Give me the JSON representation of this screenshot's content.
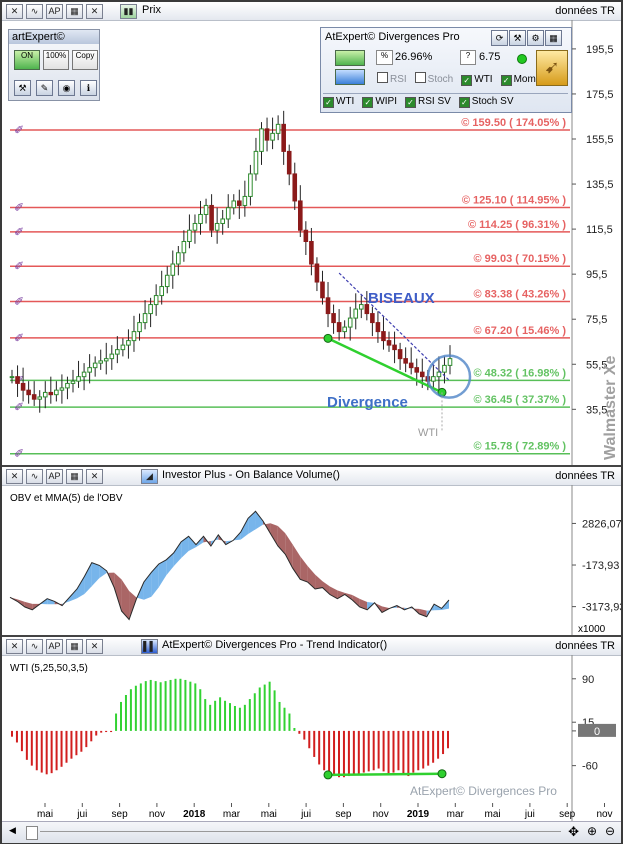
{
  "main_panel": {
    "title": "Prix",
    "right_label": "données TR",
    "toolbox_title": "artExpert©",
    "toolbox_buttons": [
      "ON",
      "100%",
      "Copy"
    ],
    "watermark": "Walmaster Xe",
    "annotations": {
      "biseaux": "BISEAUX",
      "divergence": "Divergence",
      "wti": "WTI"
    }
  },
  "widget": {
    "title": "AtExpert© Divergences Pro",
    "pct": "26.96%",
    "val": "6.75",
    "checks_row1": [
      {
        "label": "RSI",
        "on": false
      },
      {
        "label": "Stoch",
        "on": false
      },
      {
        "label": "WTI",
        "on": true
      },
      {
        "label": "Mom",
        "on": true
      }
    ],
    "checks_row2": [
      {
        "label": "WTI",
        "on": true
      },
      {
        "label": "WIPI",
        "on": true
      },
      {
        "label": "RSI SV",
        "on": true
      },
      {
        "label": "Stoch SV",
        "on": true
      }
    ]
  },
  "obv_panel": {
    "title": "Investor Plus - On Balance Volume()",
    "right_label": "données TR",
    "sublabel": "OBV et MMA(5) de l'OBV",
    "scale_note": "x1000"
  },
  "wti_panel": {
    "title": "AtExpert© Divergences Pro - Trend Indicator()",
    "right_label": "données TR",
    "sublabel": "WTI (5,25,50,3,5)",
    "watermark": "AtExpert© Divergences Pro"
  },
  "colors": {
    "up": "#2e8b2e",
    "down": "#8b1a1a",
    "level_red": "#e03c3c",
    "level_green": "#3cb43c",
    "wti_red": "#d21e1e",
    "wti_green": "#32d232",
    "wedge": "#3f3fb0"
  },
  "chart_data": [
    {
      "type": "candlestick",
      "yticks": [
        35.5,
        55.5,
        75.5,
        95.5,
        115.5,
        135.5,
        155.5,
        175.5,
        195.5
      ],
      "ylim": [
        13,
        203
      ],
      "levels": [
        {
          "price": 159.5,
          "label": "© 159.50 ( 174.05% )",
          "color": "red"
        },
        {
          "price": 125.1,
          "label": "© 125.10 ( 114.95% )",
          "color": "red"
        },
        {
          "price": 114.25,
          "label": "© 114.25 ( 96.31% )",
          "color": "red"
        },
        {
          "price": 99.03,
          "label": "© 99.03 ( 70.15% )",
          "color": "red"
        },
        {
          "price": 83.38,
          "label": "© 83.38 ( 43.26% )",
          "color": "red"
        },
        {
          "price": 67.2,
          "label": "© 67.20 ( 15.46% )",
          "color": "red"
        },
        {
          "price": 48.32,
          "label": "© 48.32 ( 16.98% )",
          "color": "green"
        },
        {
          "price": 36.45,
          "label": "© 36.45 ( 37.37% )",
          "color": "green"
        },
        {
          "price": 15.78,
          "label": "© 15.78 ( 72.89% )",
          "color": "green"
        }
      ],
      "close_path": [
        50,
        47,
        44,
        42,
        40,
        41,
        43,
        42,
        44,
        45,
        47,
        48,
        50,
        52,
        54,
        56,
        57,
        58,
        60,
        62,
        64,
        66,
        70,
        74,
        78,
        82,
        86,
        90,
        95,
        100,
        105,
        110,
        115,
        118,
        122,
        126,
        115,
        118,
        120,
        125,
        128,
        126,
        130,
        140,
        150,
        160,
        155,
        158,
        162,
        150,
        140,
        128,
        115,
        110,
        100,
        92,
        85,
        78,
        74,
        70,
        72,
        76,
        80,
        82,
        78,
        74,
        70,
        66,
        64,
        62,
        58,
        56,
        54,
        52,
        50,
        48,
        50,
        52,
        55,
        58
      ]
    },
    {
      "type": "area",
      "yticks": [
        2826.07,
        -173.93,
        -3173.93
      ],
      "ylim": [
        -4500,
        4300
      ],
      "values": [
        -2500,
        -2800,
        -3200,
        -3400,
        -3000,
        -2600,
        -2800,
        -3100,
        -2500,
        -1900,
        -1000,
        0,
        -200,
        -600,
        -1800,
        -3500,
        -4100,
        -2600,
        -1400,
        -700,
        -100,
        200,
        700,
        1500,
        1900,
        1300,
        1900,
        1200,
        2000,
        1300,
        1600,
        2200,
        3200,
        3700,
        3000,
        2100,
        1200,
        600,
        -400,
        -1200,
        -1400,
        -1900,
        -1800,
        -2300,
        -2600,
        -2300,
        -2700,
        -3200,
        -3400,
        -2900,
        -3600,
        -3300,
        -3100,
        -3400,
        -3200,
        -3700,
        -3900,
        -3000,
        -3300,
        -2700
      ]
    },
    {
      "type": "histogram",
      "yticks": [
        90,
        15,
        0,
        -60
      ],
      "ylim": [
        -90,
        100
      ],
      "values": [
        -10,
        -20,
        -35,
        -50,
        -60,
        -68,
        -72,
        -75,
        -73,
        -68,
        -62,
        -55,
        -48,
        -42,
        -36,
        -28,
        -18,
        -8,
        -3,
        -2,
        -2,
        30,
        50,
        62,
        72,
        78,
        82,
        86,
        88,
        86,
        84,
        86,
        88,
        90,
        90,
        88,
        85,
        82,
        72,
        55,
        45,
        52,
        58,
        52,
        48,
        43,
        40,
        45,
        55,
        65,
        75,
        80,
        85,
        70,
        50,
        40,
        30,
        5,
        -5,
        -15,
        -30,
        -45,
        -58,
        -68,
        -74,
        -78,
        -80,
        -80,
        -78,
        -76,
        -74,
        -72,
        -70,
        -68,
        -65,
        -70,
        -75,
        -72,
        -68,
        -74,
        -78,
        -72,
        -68,
        -65,
        -60,
        -55,
        -48,
        -40,
        -30
      ],
      "x_labels": [
        "mai",
        "jui",
        "sep",
        "nov",
        "2018",
        "mar",
        "mai",
        "jui",
        "sep",
        "nov",
        "2019",
        "mar",
        "mai",
        "jui",
        "sep",
        "nov"
      ]
    }
  ]
}
